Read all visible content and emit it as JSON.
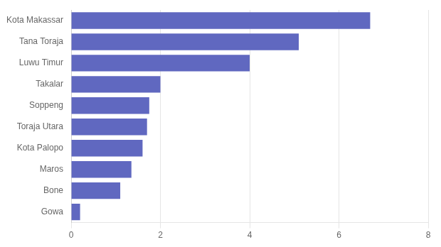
{
  "chart_data": {
    "type": "bar",
    "orientation": "horizontal",
    "categories": [
      "Gowa",
      "Bone",
      "Maros",
      "Kota Palopo",
      "Toraja Utara",
      "Soppeng",
      "Takalar",
      "Luwu Timur",
      "Tana Toraja",
      "Kota Makassar"
    ],
    "values": [
      0.2,
      1.1,
      1.35,
      1.6,
      1.7,
      1.75,
      2.0,
      4.0,
      5.1,
      6.7
    ],
    "color": "#6068c0",
    "xlim": [
      0,
      8
    ],
    "xticks": [
      0,
      2,
      4,
      6,
      8
    ],
    "grid": true
  }
}
